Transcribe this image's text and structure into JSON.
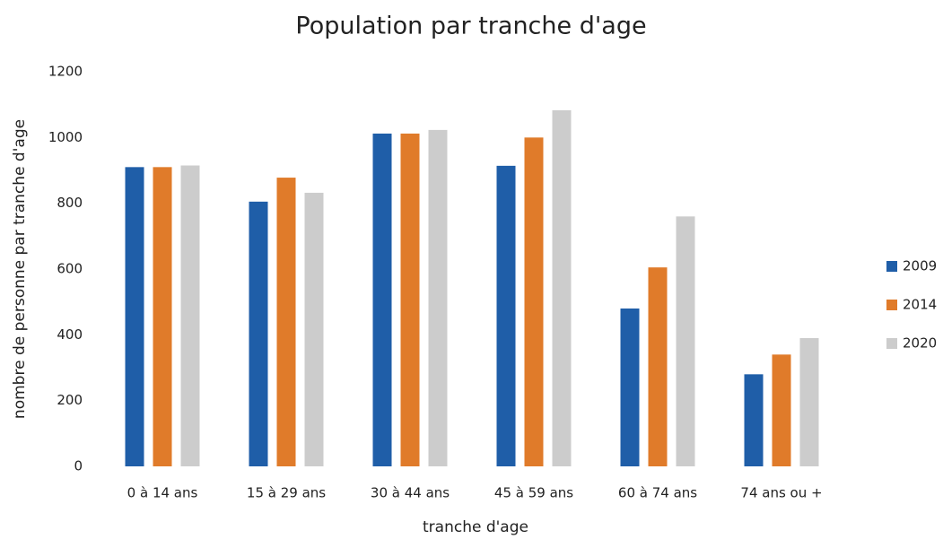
{
  "chart_data": {
    "type": "bar",
    "title": "Population par tranche d'age",
    "x_label": "tranche d'age",
    "y_label": "nombre de personne par tranche d'age",
    "categories": [
      "0 à 14 ans",
      "15 à 29 ans",
      "30 à 44 ans",
      "45 à 59 ans",
      "60 à 74 ans",
      "74 ans ou +"
    ],
    "series": [
      {
        "name": "2009",
        "color": "#1f5ea8",
        "values": [
          910,
          805,
          1012,
          914,
          480,
          280
        ]
      },
      {
        "name": "2014",
        "color": "#e07b2a",
        "values": [
          910,
          878,
          1012,
          1000,
          605,
          340
        ]
      },
      {
        "name": "2020",
        "color": "#cccccc",
        "values": [
          915,
          832,
          1023,
          1083,
          760,
          390
        ]
      }
    ],
    "ylim": [
      0,
      1200
    ],
    "yticks": [
      0,
      200,
      400,
      600,
      800,
      1000,
      1200
    ],
    "grid": false,
    "legend": "right"
  }
}
